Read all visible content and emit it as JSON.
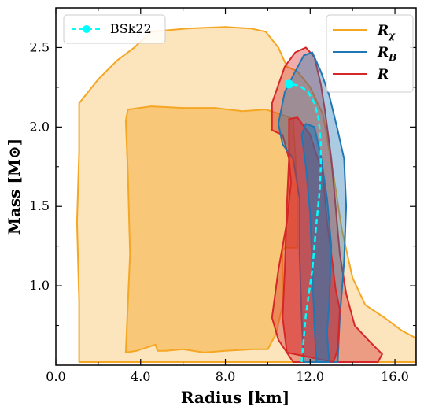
{
  "chart_data": {
    "type": "contour",
    "xlabel": "Radius [km]",
    "ylabel": "Mass [M⊙]",
    "xlim": [
      0,
      17
    ],
    "ylim": [
      0.5,
      2.75
    ],
    "xticks": [
      "0.0",
      "4.0",
      "8.0",
      "12.0",
      "16.0"
    ],
    "yticks": [
      "1.0",
      "1.5",
      "2.0",
      "2.5"
    ],
    "xtick_values": [
      0,
      4,
      8,
      12,
      16
    ],
    "ytick_values": [
      1.0,
      1.5,
      2.0,
      2.5
    ],
    "legend_left": {
      "position": "top-left",
      "entries": [
        {
          "label": "BSk22",
          "color": "#00ffff",
          "style": "dashed-marker"
        }
      ]
    },
    "legend_right": {
      "position": "top-right",
      "entries": [
        {
          "label": "R",
          "sub": "χ",
          "color": "#f5a623"
        },
        {
          "label": "R",
          "sub": "B",
          "color": "#1f77b4"
        },
        {
          "label": "R",
          "sub": "",
          "color": "#d62728"
        }
      ]
    },
    "colors": {
      "orange": "#f5a623",
      "blue": "#1f77b4",
      "red": "#d62728",
      "cyan": "#00ffff"
    },
    "series": [
      {
        "name": "Rχ",
        "color": "#f5a623",
        "level": "outer",
        "points": [
          [
            1.1,
            0.52
          ],
          [
            1.1,
            0.9
          ],
          [
            1.0,
            1.4
          ],
          [
            1.1,
            1.85
          ],
          [
            1.1,
            2.15
          ],
          [
            2.0,
            2.3
          ],
          [
            2.9,
            2.42
          ],
          [
            3.7,
            2.5
          ],
          [
            4.5,
            2.6
          ],
          [
            6.2,
            2.62
          ],
          [
            8.0,
            2.63
          ],
          [
            9.2,
            2.62
          ],
          [
            9.9,
            2.6
          ],
          [
            10.5,
            2.5
          ],
          [
            10.9,
            2.38
          ],
          [
            11.4,
            2.35
          ],
          [
            12.0,
            2.25
          ],
          [
            12.6,
            2.08
          ],
          [
            13.1,
            1.7
          ],
          [
            13.5,
            1.35
          ],
          [
            14.0,
            1.05
          ],
          [
            14.6,
            0.88
          ],
          [
            15.5,
            0.8
          ],
          [
            16.3,
            0.72
          ],
          [
            17.0,
            0.67
          ],
          [
            17.0,
            0.52
          ]
        ]
      },
      {
        "name": "Rχ",
        "color": "#f5a623",
        "level": "inner",
        "points": [
          [
            3.3,
            0.58
          ],
          [
            3.5,
            1.2
          ],
          [
            3.4,
            1.7
          ],
          [
            3.3,
            2.04
          ],
          [
            3.4,
            2.11
          ],
          [
            4.5,
            2.13
          ],
          [
            6.0,
            2.12
          ],
          [
            7.5,
            2.12
          ],
          [
            8.8,
            2.1
          ],
          [
            9.9,
            2.11
          ],
          [
            10.6,
            2.08
          ],
          [
            11.2,
            2.05
          ],
          [
            11.4,
            1.6
          ],
          [
            11.4,
            1.24
          ],
          [
            10.8,
            1.24
          ],
          [
            10.7,
            1.22
          ],
          [
            10.7,
            0.88
          ],
          [
            10.4,
            0.7
          ],
          [
            10.0,
            0.6
          ],
          [
            9.3,
            0.6
          ],
          [
            8.0,
            0.59
          ],
          [
            7.0,
            0.58
          ],
          [
            6.0,
            0.6
          ],
          [
            5.2,
            0.59
          ],
          [
            4.8,
            0.59
          ],
          [
            4.7,
            0.63
          ],
          [
            3.8,
            0.59
          ]
        ]
      },
      {
        "name": "R",
        "color": "#d62728",
        "level": "outer",
        "points": [
          [
            11.2,
            0.52
          ],
          [
            10.5,
            0.66
          ],
          [
            10.2,
            0.8
          ],
          [
            10.5,
            1.1
          ],
          [
            10.9,
            1.4
          ],
          [
            11.1,
            1.65
          ],
          [
            11.0,
            1.8
          ],
          [
            10.7,
            1.95
          ],
          [
            10.2,
            1.98
          ],
          [
            10.2,
            2.15
          ],
          [
            10.8,
            2.38
          ],
          [
            11.3,
            2.47
          ],
          [
            11.8,
            2.5
          ],
          [
            12.2,
            2.44
          ],
          [
            12.5,
            2.27
          ],
          [
            12.7,
            2.1
          ],
          [
            13.0,
            1.8
          ],
          [
            13.2,
            1.5
          ],
          [
            13.4,
            1.2
          ],
          [
            13.7,
            0.95
          ],
          [
            14.1,
            0.75
          ],
          [
            14.8,
            0.65
          ],
          [
            15.4,
            0.57
          ],
          [
            15.2,
            0.52
          ]
        ]
      },
      {
        "name": "RB",
        "color": "#1f77b4",
        "level": "outer",
        "points": [
          [
            11.7,
            0.52
          ],
          [
            11.6,
            0.8
          ],
          [
            11.5,
            1.2
          ],
          [
            11.5,
            1.55
          ],
          [
            11.2,
            1.8
          ],
          [
            10.7,
            1.89
          ],
          [
            10.5,
            2.02
          ],
          [
            10.8,
            2.22
          ],
          [
            11.3,
            2.35
          ],
          [
            11.7,
            2.45
          ],
          [
            12.1,
            2.47
          ],
          [
            12.5,
            2.35
          ],
          [
            12.9,
            2.2
          ],
          [
            13.3,
            1.98
          ],
          [
            13.6,
            1.8
          ],
          [
            13.7,
            1.5
          ],
          [
            13.6,
            1.15
          ],
          [
            13.4,
            0.8
          ],
          [
            13.3,
            0.52
          ]
        ]
      },
      {
        "name": "R",
        "color": "#d62728",
        "level": "inner",
        "points": [
          [
            10.9,
            0.58
          ],
          [
            10.7,
            0.8
          ],
          [
            10.8,
            1.1
          ],
          [
            10.9,
            1.5
          ],
          [
            11.0,
            1.8
          ],
          [
            11.0,
            2.05
          ],
          [
            11.4,
            2.06
          ],
          [
            12.0,
            1.95
          ],
          [
            12.6,
            1.7
          ],
          [
            12.8,
            1.4
          ],
          [
            13.0,
            1.2
          ],
          [
            13.2,
            0.98
          ],
          [
            13.4,
            0.85
          ],
          [
            13.3,
            0.6
          ],
          [
            13.1,
            0.52
          ]
        ]
      },
      {
        "name": "RB",
        "color": "#1f77b4",
        "level": "inner",
        "points": [
          [
            12.3,
            0.52
          ],
          [
            12.2,
            0.75
          ],
          [
            12.1,
            1.1
          ],
          [
            12.0,
            1.45
          ],
          [
            11.8,
            1.75
          ],
          [
            11.6,
            1.95
          ],
          [
            11.8,
            2.02
          ],
          [
            12.2,
            2.0
          ],
          [
            12.5,
            1.82
          ],
          [
            12.8,
            1.55
          ],
          [
            13.0,
            1.25
          ],
          [
            12.9,
            0.9
          ],
          [
            12.8,
            0.7
          ],
          [
            12.9,
            0.52
          ]
        ]
      }
    ],
    "line": {
      "name": "BSk22",
      "color": "#00ffff",
      "points": [
        [
          11.6,
          0.52
        ],
        [
          11.8,
          0.82
        ],
        [
          12.1,
          1.1
        ],
        [
          12.3,
          1.4
        ],
        [
          12.45,
          1.6
        ],
        [
          12.5,
          1.75
        ],
        [
          12.5,
          1.9
        ],
        [
          12.4,
          2.05
        ],
        [
          12.2,
          2.15
        ],
        [
          11.9,
          2.22
        ],
        [
          11.5,
          2.26
        ],
        [
          11.1,
          2.27
        ]
      ],
      "marker": [
        11.0,
        2.27
      ]
    }
  }
}
